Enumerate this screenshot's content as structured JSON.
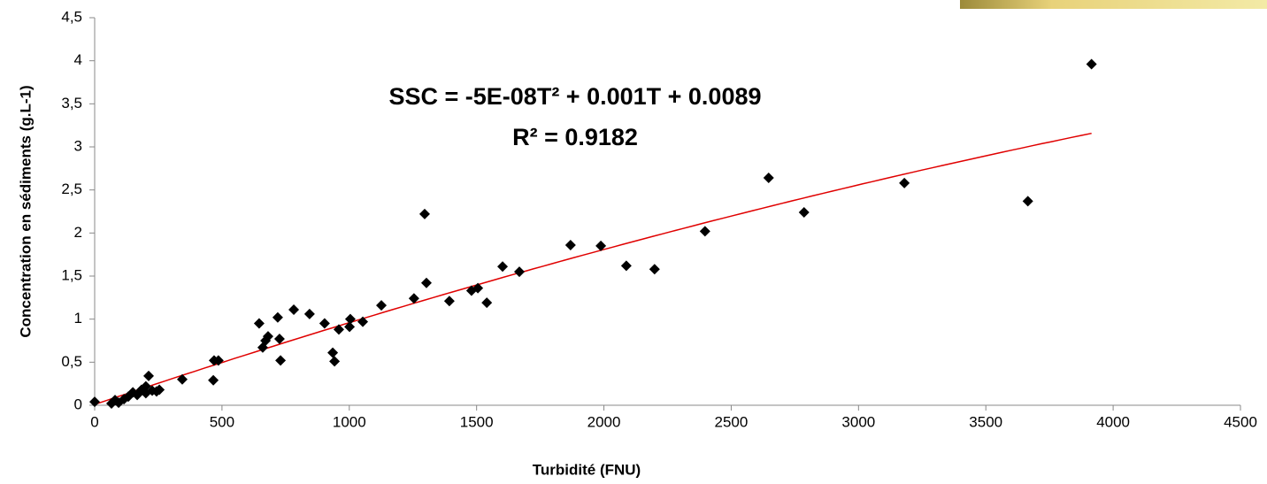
{
  "chart_data": {
    "type": "scatter",
    "x_label": "Turbidité (FNU)",
    "y_label": "Concentration en sédiments (g.L-1)",
    "color": "#000000",
    "x": [
      0,
      66,
      80,
      94,
      115,
      132,
      150,
      167,
      184,
      201,
      212,
      201,
      226,
      243,
      254,
      344,
      466,
      469,
      486,
      646,
      660,
      671,
      681,
      719,
      726,
      730,
      782,
      844,
      903,
      935,
      942,
      959,
      1001,
      1004,
      1053,
      1126,
      1254,
      1296,
      1303,
      1393,
      1480,
      1505,
      1540,
      1602,
      1668,
      1869,
      1988,
      2088,
      2199,
      2397,
      2647,
      2786,
      3180,
      3665,
      3915
    ],
    "values": [
      0.04,
      0.02,
      0.06,
      0.03,
      0.07,
      0.1,
      0.15,
      0.12,
      0.18,
      0.22,
      0.34,
      0.14,
      0.17,
      0.16,
      0.18,
      0.3,
      0.29,
      0.52,
      0.52,
      0.95,
      0.67,
      0.75,
      0.8,
      1.02,
      0.77,
      0.52,
      1.11,
      1.06,
      0.95,
      0.61,
      0.51,
      0.88,
      0.91,
      1.0,
      0.97,
      1.16,
      1.24,
      2.22,
      1.42,
      1.21,
      1.33,
      1.36,
      1.19,
      1.61,
      1.55,
      1.86,
      1.85,
      1.62,
      1.58,
      2.02,
      2.64,
      2.24,
      2.58,
      2.37,
      3.96
    ],
    "xlim": [
      0,
      4500
    ],
    "xticks": [
      0,
      500,
      1000,
      1500,
      2000,
      2500,
      3000,
      3500,
      4000,
      4500
    ],
    "ylim": [
      0,
      4.5
    ],
    "yticks": [
      0,
      {
        "value": 0.5,
        "label": "0,5"
      },
      1,
      {
        "value": 1.5,
        "label": "1,5"
      },
      2,
      {
        "value": 2.5,
        "label": "2,5"
      },
      3,
      {
        "value": 3.5,
        "label": "3,5"
      },
      4,
      {
        "value": 4.5,
        "label": "4,5"
      }
    ],
    "grid": false,
    "trendline": {
      "equation": "SSC = -5E-08T² + 0.001T + 0.0089",
      "r2_label": "R² = 0.9182",
      "coefficients": [
        -5e-08,
        0.001,
        0.0089
      ],
      "color": "#e00000"
    }
  }
}
